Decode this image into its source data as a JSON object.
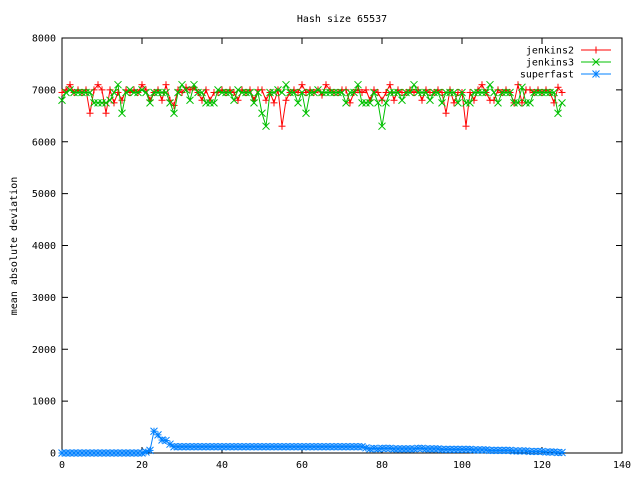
{
  "chart_data": {
    "type": "line",
    "title": "Hash size 65537",
    "xlabel": "",
    "ylabel": "mean absolute deviation",
    "xlim": [
      0,
      140
    ],
    "ylim": [
      0,
      8000
    ],
    "xticks": [
      0,
      20,
      40,
      60,
      80,
      100,
      120,
      140
    ],
    "yticks": [
      0,
      1000,
      2000,
      3000,
      4000,
      5000,
      6000,
      7000,
      8000
    ],
    "grid": false,
    "legend_position": "top-right",
    "series": [
      {
        "name": "jenkins2",
        "color": "#ff0000",
        "marker": "plus",
        "x": [
          0,
          1,
          2,
          3,
          4,
          5,
          6,
          7,
          8,
          9,
          10,
          11,
          12,
          13,
          14,
          15,
          16,
          17,
          18,
          19,
          20,
          21,
          22,
          23,
          24,
          25,
          26,
          27,
          28,
          29,
          30,
          31,
          32,
          33,
          34,
          35,
          36,
          37,
          38,
          39,
          40,
          41,
          42,
          43,
          44,
          45,
          46,
          47,
          48,
          49,
          50,
          51,
          52,
          53,
          54,
          55,
          56,
          57,
          58,
          59,
          60,
          61,
          62,
          63,
          64,
          65,
          66,
          67,
          68,
          69,
          70,
          71,
          72,
          73,
          74,
          75,
          76,
          77,
          78,
          79,
          80,
          81,
          82,
          83,
          84,
          85,
          86,
          87,
          88,
          89,
          90,
          91,
          92,
          93,
          94,
          95,
          96,
          97,
          98,
          99,
          100,
          101,
          102,
          103,
          104,
          105,
          106,
          107,
          108,
          109,
          110,
          111,
          112,
          113,
          114,
          115,
          116,
          117,
          118,
          119,
          120,
          121,
          122,
          123,
          124,
          125
        ],
        "y": [
          6950,
          7000,
          7100,
          6950,
          7000,
          6950,
          7000,
          6550,
          7000,
          7100,
          7000,
          6550,
          7000,
          6750,
          6950,
          6800,
          7000,
          6950,
          7000,
          6950,
          7100,
          7000,
          6800,
          6950,
          7000,
          6800,
          7100,
          6800,
          6700,
          7000,
          6950,
          7050,
          7000,
          7050,
          6950,
          6800,
          7000,
          6800,
          6950,
          6950,
          7000,
          6950,
          7000,
          6950,
          6800,
          7000,
          6950,
          7000,
          6800,
          7000,
          7000,
          6800,
          6950,
          6750,
          7000,
          6300,
          6800,
          6950,
          7000,
          6950,
          7100,
          6950,
          7000,
          6950,
          7000,
          6900,
          7100,
          7000,
          6950,
          6950,
          7000,
          7000,
          6750,
          6950,
          7000,
          6950,
          7000,
          6800,
          7000,
          6950,
          6800,
          6950,
          7100,
          6800,
          7000,
          6950,
          6950,
          7000,
          6950,
          7000,
          6800,
          7000,
          6950,
          6950,
          7000,
          6950,
          6550,
          7000,
          6750,
          6950,
          6950,
          6300,
          6950,
          6800,
          7000,
          7100,
          6950,
          6800,
          6800,
          7000,
          6950,
          7000,
          6950,
          6750,
          7100,
          6750,
          7000,
          7000,
          6950,
          7000,
          6950,
          7000,
          6950,
          6750,
          7050,
          6950
        ]
      },
      {
        "name": "jenkins3",
        "color": "#00c000",
        "marker": "cross",
        "x": [
          0,
          1,
          2,
          3,
          4,
          5,
          6,
          7,
          8,
          9,
          10,
          11,
          12,
          13,
          14,
          15,
          16,
          17,
          18,
          19,
          20,
          21,
          22,
          23,
          24,
          25,
          26,
          27,
          28,
          29,
          30,
          31,
          32,
          33,
          34,
          35,
          36,
          37,
          38,
          39,
          40,
          41,
          42,
          43,
          44,
          45,
          46,
          47,
          48,
          49,
          50,
          51,
          52,
          53,
          54,
          55,
          56,
          57,
          58,
          59,
          60,
          61,
          62,
          63,
          64,
          65,
          66,
          67,
          68,
          69,
          70,
          71,
          72,
          73,
          74,
          75,
          76,
          77,
          78,
          79,
          80,
          81,
          82,
          83,
          84,
          85,
          86,
          87,
          88,
          89,
          90,
          91,
          92,
          93,
          94,
          95,
          96,
          97,
          98,
          99,
          100,
          101,
          102,
          103,
          104,
          105,
          106,
          107,
          108,
          109,
          110,
          111,
          112,
          113,
          114,
          115,
          116,
          117,
          118,
          119,
          120,
          121,
          122,
          123,
          124,
          125
        ],
        "y": [
          6800,
          6950,
          7000,
          6950,
          6950,
          6950,
          6950,
          6950,
          6750,
          6750,
          6750,
          6750,
          6800,
          6950,
          7100,
          6550,
          6950,
          7000,
          6950,
          6950,
          7000,
          6950,
          6750,
          6950,
          6950,
          6950,
          6950,
          6750,
          6550,
          6950,
          7100,
          7000,
          6800,
          7100,
          6950,
          6950,
          6750,
          6750,
          6750,
          7000,
          6950,
          6950,
          6950,
          6800,
          7000,
          6950,
          6950,
          6950,
          6750,
          6950,
          6550,
          6300,
          6950,
          6950,
          7000,
          6950,
          7100,
          6950,
          6950,
          6750,
          6950,
          6550,
          6950,
          6950,
          7000,
          6950,
          6950,
          6950,
          6950,
          6950,
          6950,
          6750,
          6950,
          6950,
          7100,
          6750,
          6750,
          6750,
          6950,
          6750,
          6300,
          6750,
          6950,
          6950,
          6950,
          6800,
          6950,
          6950,
          7100,
          6950,
          6950,
          6950,
          6800,
          6950,
          6950,
          6750,
          6950,
          6950,
          6950,
          6750,
          6950,
          6750,
          6750,
          6950,
          6950,
          6950,
          6950,
          7100,
          6950,
          6750,
          6950,
          6950,
          6950,
          6750,
          6750,
          7050,
          6750,
          6750,
          6950,
          6950,
          6950,
          6950,
          6950,
          6950,
          6550,
          6750
        ]
      },
      {
        "name": "superfast",
        "color": "#0080ff",
        "marker": "star",
        "x": [
          0,
          1,
          2,
          3,
          4,
          5,
          6,
          7,
          8,
          9,
          10,
          11,
          12,
          13,
          14,
          15,
          16,
          17,
          18,
          19,
          20,
          21,
          22,
          23,
          24,
          25,
          26,
          27,
          28,
          29,
          30,
          31,
          32,
          33,
          34,
          35,
          36,
          37,
          38,
          39,
          40,
          41,
          42,
          43,
          44,
          45,
          46,
          47,
          48,
          49,
          50,
          51,
          52,
          53,
          54,
          55,
          56,
          57,
          58,
          59,
          60,
          61,
          62,
          63,
          64,
          65,
          66,
          67,
          68,
          69,
          70,
          71,
          72,
          73,
          74,
          75,
          76,
          77,
          78,
          79,
          80,
          81,
          82,
          83,
          84,
          85,
          86,
          87,
          88,
          89,
          90,
          91,
          92,
          93,
          94,
          95,
          96,
          97,
          98,
          99,
          100,
          101,
          102,
          103,
          104,
          105,
          106,
          107,
          108,
          109,
          110,
          111,
          112,
          113,
          114,
          115,
          116,
          117,
          118,
          119,
          120,
          121,
          122,
          123,
          124,
          125
        ],
        "y": [
          0,
          0,
          0,
          0,
          0,
          0,
          0,
          0,
          0,
          0,
          0,
          0,
          0,
          0,
          0,
          0,
          0,
          0,
          0,
          0,
          0,
          20,
          50,
          420,
          350,
          250,
          240,
          170,
          120,
          120,
          120,
          120,
          120,
          120,
          120,
          120,
          120,
          120,
          120,
          120,
          120,
          120,
          120,
          120,
          120,
          120,
          120,
          120,
          120,
          120,
          120,
          120,
          120,
          120,
          120,
          120,
          120,
          120,
          120,
          120,
          120,
          120,
          120,
          120,
          120,
          120,
          120,
          120,
          120,
          120,
          120,
          120,
          120,
          120,
          120,
          120,
          100,
          80,
          90,
          80,
          90,
          90,
          90,
          80,
          80,
          80,
          80,
          80,
          80,
          90,
          90,
          80,
          80,
          80,
          80,
          70,
          70,
          70,
          70,
          70,
          70,
          70,
          70,
          60,
          60,
          60,
          60,
          50,
          50,
          50,
          50,
          50,
          50,
          40,
          40,
          40,
          40,
          30,
          30,
          30,
          30,
          20,
          20,
          20,
          10,
          10
        ]
      }
    ]
  }
}
